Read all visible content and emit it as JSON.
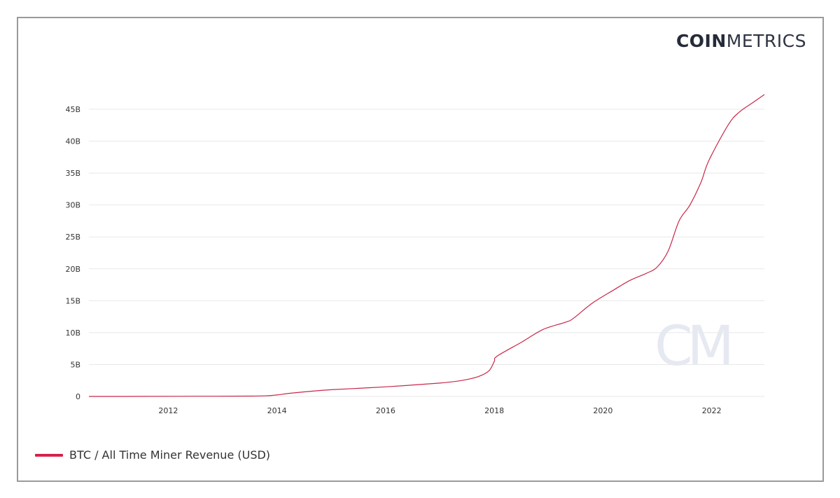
{
  "brand": {
    "bold": "COIN",
    "light": "METRICS",
    "watermark": "CM"
  },
  "colors": {
    "line": "#c8284a",
    "legend": "#d6224a",
    "grid": "#e8e8e8",
    "watermark": "#e6e9f1"
  },
  "legend": [
    {
      "label": "BTC / All Time Miner Revenue (USD)"
    }
  ],
  "chart_data": {
    "type": "line",
    "title": "",
    "xlabel": "",
    "ylabel": "",
    "xlim": [
      2010.54,
      2022.97
    ],
    "ylim": [
      0,
      45
    ],
    "grid": true,
    "legend_position": "bottom-left",
    "x_ticks": [
      2012,
      2014,
      2016,
      2018,
      2020,
      2022
    ],
    "x_tick_labels": [
      "2012",
      "2014",
      "2016",
      "2018",
      "2020",
      "2022"
    ],
    "y_ticks": [
      0,
      5,
      10,
      15,
      20,
      25,
      30,
      35,
      40,
      45
    ],
    "y_tick_labels": [
      "0",
      "5B",
      "10B",
      "15B",
      "20B",
      "25B",
      "30B",
      "35B",
      "40B",
      "45B"
    ],
    "series": [
      {
        "name": "BTC / All Time Miner Revenue (USD)",
        "unit": "billions USD",
        "x": [
          2010.54,
          2011.5,
          2012.5,
          2013.5,
          2013.9,
          2014.3,
          2015.0,
          2016.0,
          2017.0,
          2017.4,
          2017.7,
          2017.9,
          2018.0,
          2018.05,
          2018.5,
          2018.9,
          2019.3,
          2019.45,
          2019.8,
          2020.2,
          2020.5,
          2020.8,
          2021.0,
          2021.2,
          2021.4,
          2021.6,
          2021.8,
          2021.95,
          2022.3,
          2022.5,
          2022.75,
          2022.97
        ],
        "values": [
          0,
          0.01,
          0.03,
          0.05,
          0.15,
          0.55,
          1.05,
          1.5,
          2.1,
          2.5,
          3.1,
          4.0,
          5.5,
          6.3,
          8.5,
          10.5,
          11.6,
          12.2,
          14.6,
          16.7,
          18.2,
          19.3,
          20.3,
          22.8,
          27.5,
          30.0,
          33.5,
          37.0,
          42.5,
          44.5,
          46.0,
          47.3
        ]
      }
    ]
  }
}
